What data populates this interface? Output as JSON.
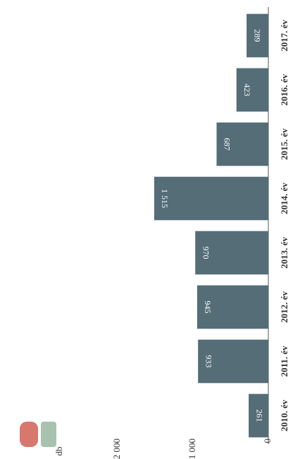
{
  "chart_data": {
    "type": "bar",
    "unit_label": "db",
    "categories": [
      "2010. év",
      "2011. év",
      "2012. év",
      "2013. év",
      "2014. év",
      "2015. év",
      "2016. év",
      "2017. év"
    ],
    "values": [
      261,
      933,
      945,
      970,
      1515,
      687,
      423,
      289
    ],
    "value_labels": [
      "261",
      "933",
      "945",
      "970",
      "1 515",
      "687",
      "423",
      "289"
    ],
    "color": "#546d77",
    "ylim": [
      0,
      3000
    ],
    "yticks": [
      0,
      {
        "value": 1000,
        "label": "1 000"
      },
      {
        "value": 2000,
        "label": "2 000"
      }
    ]
  }
}
